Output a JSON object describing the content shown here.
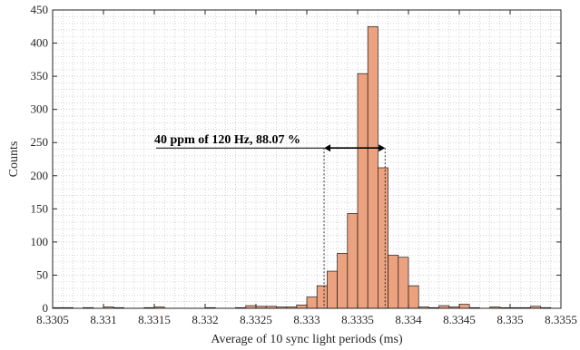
{
  "chart_data": {
    "type": "bar",
    "xlabel": "Average of 10 sync light periods (ms)",
    "ylabel": "Counts",
    "xlim": [
      8.3305,
      8.3355
    ],
    "ylim": [
      0,
      450
    ],
    "xticks": [
      8.3305,
      8.331,
      8.3315,
      8.332,
      8.3325,
      8.333,
      8.3335,
      8.334,
      8.3345,
      8.335,
      8.3355
    ],
    "xtick_labels": [
      "8.3305",
      "8.331",
      "8.3315",
      "8.332",
      "8.3325",
      "8.333",
      "8.3335",
      "8.334",
      "8.3345",
      "8.335",
      "8.3355"
    ],
    "yticks": [
      0,
      50,
      100,
      150,
      200,
      250,
      300,
      350,
      400,
      450
    ],
    "ytick_labels": [
      "0",
      "50",
      "100",
      "150",
      "200",
      "250",
      "300",
      "350",
      "400",
      "450"
    ],
    "grid": true,
    "bin_width": 0.0001,
    "bin_starts": [
      8.3305,
      8.3306,
      8.3307,
      8.3308,
      8.3309,
      8.331,
      8.3311,
      8.3312,
      8.3313,
      8.3314,
      8.3315,
      8.3316,
      8.3317,
      8.3318,
      8.3319,
      8.332,
      8.3321,
      8.3322,
      8.3323,
      8.3324,
      8.3325,
      8.3326,
      8.3327,
      8.3328,
      8.3329,
      8.333,
      8.3331,
      8.3332,
      8.3333,
      8.3334,
      8.3335,
      8.3336,
      8.3337,
      8.3338,
      8.3339,
      8.334,
      8.3341,
      8.3342,
      8.3343,
      8.3344,
      8.3345,
      8.3346,
      8.3347,
      8.3348,
      8.3349,
      8.335,
      8.3351,
      8.3352,
      8.3353,
      8.3354
    ],
    "values": [
      1,
      1,
      0,
      1,
      0,
      2,
      1,
      0,
      0,
      1,
      2,
      0,
      0,
      0,
      0,
      1,
      0,
      0,
      1,
      4,
      3,
      3,
      2,
      2,
      5,
      17,
      34,
      56,
      83,
      143,
      354,
      425,
      212,
      80,
      77,
      34,
      2,
      1,
      4,
      2,
      6,
      1,
      0,
      2,
      1,
      1,
      1,
      3,
      1,
      0
    ],
    "bar_color": "#EDA27F",
    "bar_edge_color": "#1a1a1a",
    "annotation": {
      "text": "40 ppm of 120 Hz, 88.07 %",
      "start": 8.33317,
      "end": 8.33377,
      "y": 250
    }
  }
}
